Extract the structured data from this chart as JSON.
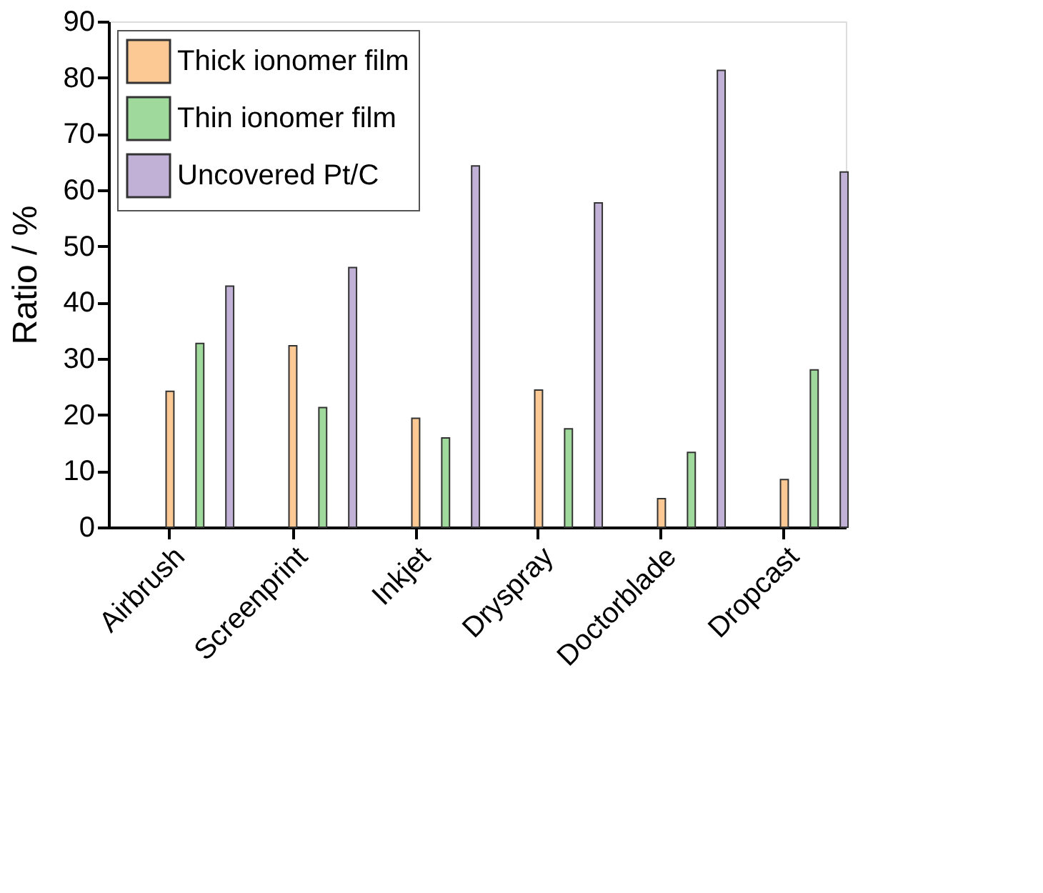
{
  "chart_data": {
    "type": "bar",
    "ylabel": "Ratio / %",
    "categories": [
      "Airbrush",
      "Screenprint",
      "Inkjet",
      "Dryspray",
      "Doctorblade",
      "Dropcast"
    ],
    "series": [
      {
        "name": "Thick ionomer film",
        "color": "#fcc893",
        "values": [
          24.2,
          32.3,
          19.4,
          24.4,
          5.1,
          8.5
        ]
      },
      {
        "name": "Thin ionomer film",
        "color": "#9fd99b",
        "values": [
          32.7,
          21.3,
          15.9,
          17.5,
          13.3,
          28.0
        ]
      },
      {
        "name": "Uncovered Pt/C",
        "color": "#c2b1d6",
        "values": [
          42.9,
          46.2,
          64.3,
          57.7,
          81.3,
          63.2
        ]
      }
    ],
    "ylim": [
      0,
      90
    ],
    "yticks": [
      0,
      10,
      20,
      30,
      40,
      50,
      60,
      70,
      80,
      90
    ],
    "grid": false,
    "legend": "top left"
  }
}
